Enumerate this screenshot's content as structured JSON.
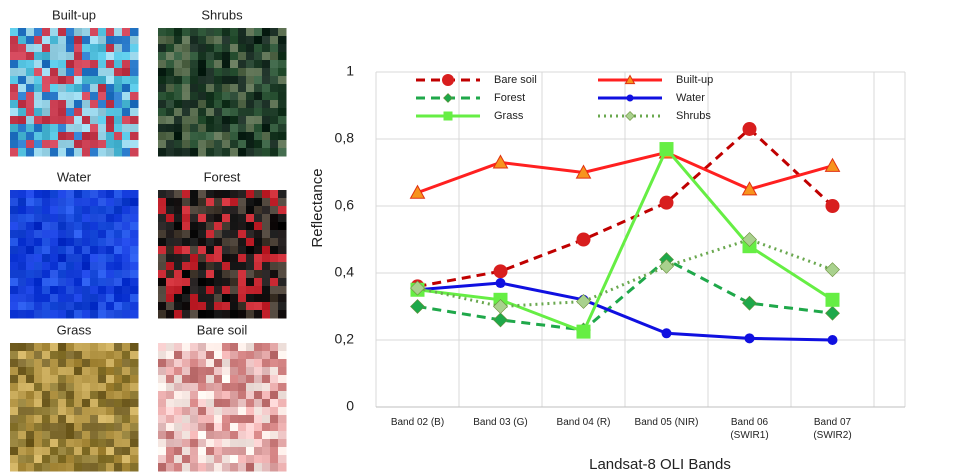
{
  "image_panels": [
    {
      "label": "Built-up"
    },
    {
      "label": "Shrubs"
    },
    {
      "label": "Water"
    },
    {
      "label": "Forest"
    },
    {
      "label": "Grass"
    },
    {
      "label": "Bare soil"
    }
  ],
  "chart_data": {
    "type": "line",
    "y_label": "Reflectance",
    "x_label": "Landsat-8 OLI Bands",
    "categories": [
      "Band 02 (B)",
      "Band 03 (G)",
      "Band 04 (R)",
      "Band 05 (NIR)",
      "Band 06 (SWIR1)",
      "Band 07 (SWIR2)"
    ],
    "ylim": [
      0,
      1
    ],
    "yticks": [
      0,
      {
        "value": 0.2,
        "label": "0,2"
      },
      {
        "value": 0.4,
        "label": "0,4"
      },
      {
        "value": 0.6,
        "label": "0,6"
      },
      {
        "value": 0.8,
        "label": "0,8"
      },
      1
    ],
    "grid": true,
    "series": [
      {
        "name": "Bare soil",
        "color": "#c00000",
        "marker_color": "#d81e1e",
        "dash": "dashed",
        "marker": "circle",
        "values": [
          0.36,
          0.405,
          0.5,
          0.61,
          0.83,
          0.6
        ]
      },
      {
        "name": "Built-up",
        "color": "#ff2020",
        "marker_color": "#f7941d",
        "dash": "solid",
        "marker": "triangle",
        "values": [
          0.64,
          0.73,
          0.7,
          0.76,
          0.65,
          0.72
        ]
      },
      {
        "name": "Forest",
        "color": "#1fa84a",
        "marker_color": "#1fa84a",
        "dash": "dashed",
        "marker": "diamond",
        "values": [
          0.3,
          0.26,
          0.23,
          0.44,
          0.31,
          0.28
        ]
      },
      {
        "name": "Water",
        "color": "#1010e0",
        "marker_color": "#1010e0",
        "dash": "solid",
        "marker": "circle",
        "values": [
          0.35,
          0.37,
          0.32,
          0.22,
          0.205,
          0.2
        ]
      },
      {
        "name": "Grass",
        "color": "#66ee44",
        "marker_color": "#66ee44",
        "dash": "solid",
        "marker": "square",
        "values": [
          0.35,
          0.32,
          0.225,
          0.77,
          0.48,
          0.32
        ]
      },
      {
        "name": "Shrubs",
        "color": "#6aa84f",
        "marker_color": "#a9d18e",
        "dash": "dotted",
        "marker": "diamond",
        "values": [
          0.355,
          0.3,
          0.315,
          0.42,
          0.5,
          0.41
        ]
      }
    ]
  }
}
